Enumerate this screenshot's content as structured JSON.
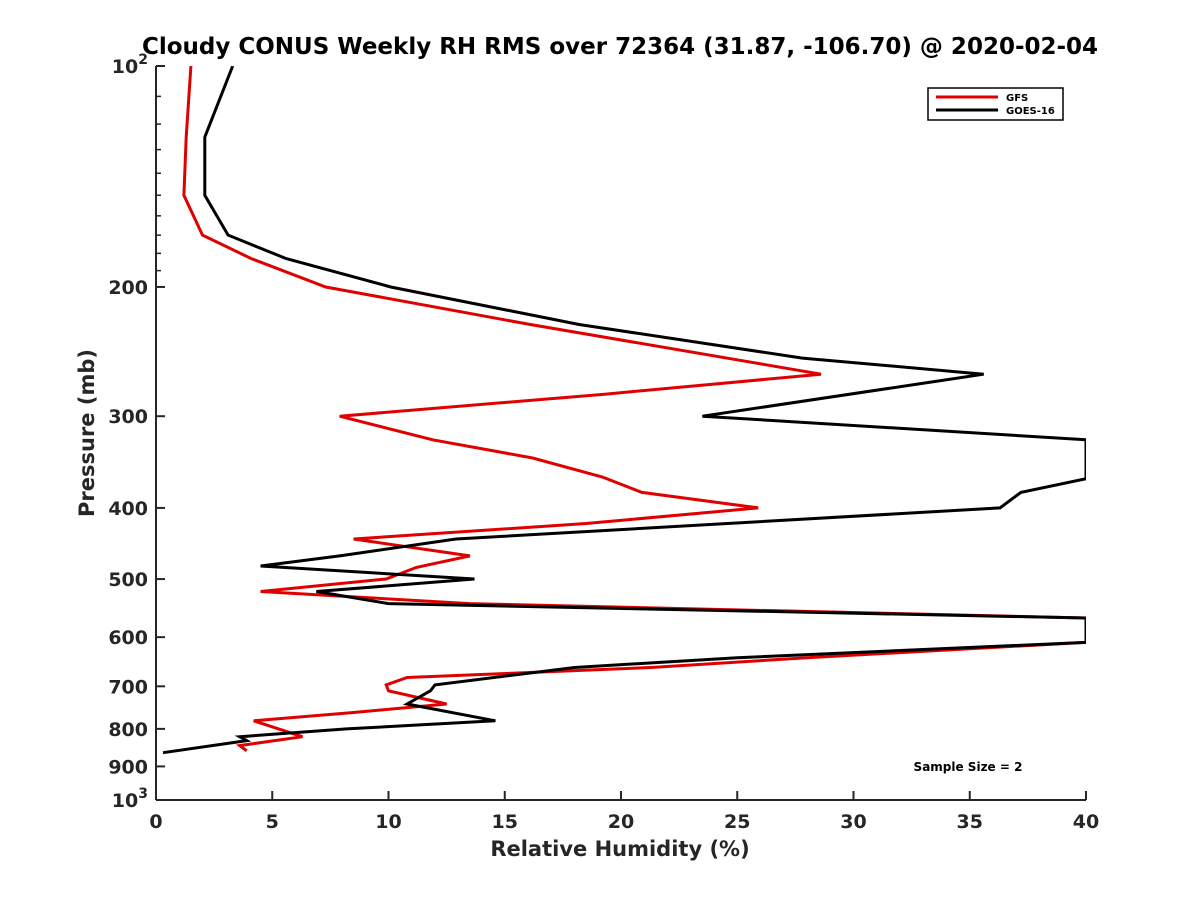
{
  "chart_data": {
    "type": "line",
    "title": "Cloudy CONUS Weekly RH RMS over 72364 (31.87, -106.70) @ 2020-02-04",
    "xlabel": "Relative Humidity (%)",
    "ylabel": "Pressure (mb)",
    "xlim": [
      0,
      40
    ],
    "ylim": [
      100,
      1000
    ],
    "y_scale": "log",
    "y_reversed": true,
    "x_ticks": [
      "0",
      "5",
      "10",
      "15",
      "20",
      "25",
      "30",
      "35",
      "40"
    ],
    "y_ticks": [
      {
        "value": 100,
        "base": "10",
        "exp": "2"
      },
      {
        "value": 200,
        "label": "200"
      },
      {
        "value": 300,
        "label": "300"
      },
      {
        "value": 400,
        "label": "400"
      },
      {
        "value": 500,
        "label": "500"
      },
      {
        "value": 600,
        "label": "600"
      },
      {
        "value": 700,
        "label": "700"
      },
      {
        "value": 800,
        "label": "800"
      },
      {
        "value": 900,
        "label": "900"
      },
      {
        "value": 1000,
        "base": "10",
        "exp": "3"
      }
    ],
    "grid": false,
    "legend_position": "top-right",
    "series": [
      {
        "name": "GFS",
        "color": "#e00000",
        "points": [
          [
            1.5,
            100
          ],
          [
            1.3,
            125
          ],
          [
            1.2,
            150
          ],
          [
            2.0,
            170
          ],
          [
            4.1,
            183
          ],
          [
            7.3,
            200
          ],
          [
            16.1,
            225
          ],
          [
            28.6,
            263
          ],
          [
            19.3,
            280
          ],
          [
            7.9,
            300
          ],
          [
            11.9,
            323
          ],
          [
            16.2,
            342
          ],
          [
            19.2,
            363
          ],
          [
            20.9,
            381
          ],
          [
            25.9,
            400
          ],
          [
            18.5,
            420
          ],
          [
            8.5,
            441
          ],
          [
            13.5,
            465
          ],
          [
            11.2,
            482
          ],
          [
            9.9,
            500
          ],
          [
            4.5,
            520
          ],
          [
            13.5,
            540
          ],
          [
            40,
            565
          ],
          [
            40,
            610
          ],
          [
            28.0,
            640
          ],
          [
            21.3,
            660
          ],
          [
            10.8,
            681
          ],
          [
            9.9,
            697
          ],
          [
            10.0,
            710
          ],
          [
            12.5,
            740
          ],
          [
            8.5,
            760
          ],
          [
            4.2,
            780
          ],
          [
            6.3,
            820
          ],
          [
            3.6,
            843
          ],
          [
            3.9,
            857
          ]
        ]
      },
      {
        "name": "GOES-16",
        "color": "#000000",
        "points": [
          [
            3.3,
            100
          ],
          [
            2.1,
            125
          ],
          [
            2.1,
            150
          ],
          [
            3.1,
            170
          ],
          [
            5.6,
            183
          ],
          [
            10.1,
            200
          ],
          [
            18.2,
            225
          ],
          [
            27.8,
            250
          ],
          [
            35.6,
            263
          ],
          [
            23.5,
            300
          ],
          [
            40,
            323
          ],
          [
            40,
            365
          ],
          [
            37.2,
            381
          ],
          [
            36.3,
            400
          ],
          [
            12.9,
            441
          ],
          [
            7.9,
            465
          ],
          [
            4.5,
            480
          ],
          [
            13.7,
            500
          ],
          [
            6.9,
            520
          ],
          [
            10.0,
            540
          ],
          [
            40,
            565
          ],
          [
            40,
            610
          ],
          [
            25.0,
            640
          ],
          [
            18.0,
            660
          ],
          [
            12.0,
            697
          ],
          [
            11.8,
            710
          ],
          [
            10.8,
            740
          ],
          [
            14.6,
            780
          ],
          [
            8.2,
            800
          ],
          [
            3.6,
            820
          ],
          [
            3.9,
            830
          ],
          [
            0.3,
            862
          ]
        ]
      }
    ],
    "annotation": "Sample Size = 2"
  }
}
